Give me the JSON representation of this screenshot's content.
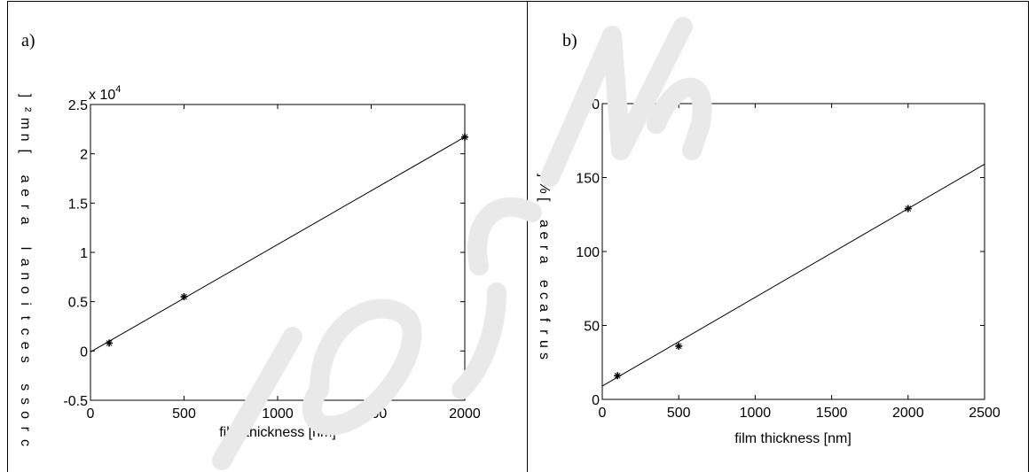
{
  "panels": [
    {
      "panel_label": "a)",
      "chart_data": {
        "type": "scatter",
        "title": "",
        "xlabel": "film thickness [nm]",
        "ylabel": "cross sectional area [nm²]",
        "y_exponent_label": "x 10",
        "y_exponent_power": "4",
        "xlim": [
          0,
          2000
        ],
        "ylim": [
          -0.5,
          2.5
        ],
        "x_ticks": [
          0,
          500,
          1000,
          1500,
          2000
        ],
        "y_ticks": [
          -0.5,
          0,
          0.5,
          1,
          1.5,
          2,
          2.5
        ],
        "x_tick_labels": [
          "0",
          "500",
          "1000",
          "1500",
          "2000"
        ],
        "y_tick_labels": [
          "-0.5",
          "0",
          "0.5",
          "1",
          "1.5",
          "2",
          "2.5"
        ],
        "grid": false,
        "series": [
          {
            "kind": "points",
            "x": [
              100,
              500,
              2000
            ],
            "y": [
              0.08,
              0.55,
              2.17
            ]
          },
          {
            "kind": "fit",
            "x": [
              0,
              2000
            ],
            "y": [
              -0.01,
              2.17
            ]
          }
        ]
      }
    },
    {
      "panel_label": "b)",
      "chart_data": {
        "type": "scatter",
        "title": "",
        "xlabel": "film thickness [nm]",
        "ylabel": "surface area [%]",
        "xlim": [
          0,
          2500
        ],
        "ylim": [
          0,
          200
        ],
        "x_ticks": [
          0,
          500,
          1000,
          1500,
          2000,
          2500
        ],
        "y_ticks": [
          0,
          50,
          100,
          150,
          200
        ],
        "x_tick_labels": [
          "0",
          "500",
          "1000",
          "1500",
          "2000",
          "2500"
        ],
        "y_tick_labels": [
          "0",
          "50",
          "100",
          "150",
          "200"
        ],
        "grid": false,
        "series": [
          {
            "kind": "points",
            "x": [
              100,
              500,
              2000
            ],
            "y": [
              16,
              36,
              129
            ]
          },
          {
            "kind": "fit",
            "x": [
              0,
              2500
            ],
            "y": [
              9,
              159
            ]
          }
        ]
      }
    }
  ]
}
